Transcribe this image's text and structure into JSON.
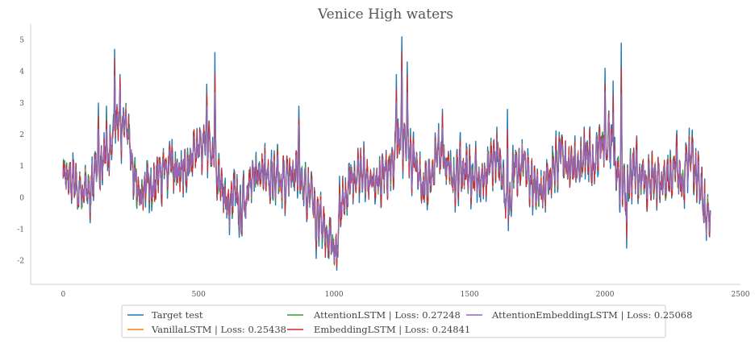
{
  "chart_data": {
    "type": "line",
    "title": "Venice High waters",
    "xlabel": "",
    "ylabel": "",
    "xlim": [
      -120,
      2500
    ],
    "ylim": [
      -2.75,
      5.5
    ],
    "x_ticks": [
      0,
      500,
      1000,
      1500,
      2000,
      2500
    ],
    "y_ticks": [
      -2,
      -1,
      0,
      1,
      2,
      3,
      4,
      5
    ],
    "grid": false,
    "legend_placement": "bottom-center",
    "n_points": 2390,
    "series": [
      {
        "name": "Target test",
        "color": "#1f77b4"
      },
      {
        "name": "VanillaLSTM | Loss: 0.25438",
        "color": "#ff7f0e"
      },
      {
        "name": "AttentionLSTM | Loss: 0.27248",
        "color": "#2ca02c"
      },
      {
        "name": "EmbeddingLSTM | Loss: 0.24841",
        "color": "#d62728"
      },
      {
        "name": "AttentionEmbeddingLSTM | Loss: 0.25068",
        "color": "#9467bd"
      }
    ],
    "target_anchors": [
      [
        0,
        0.9
      ],
      [
        40,
        0.6
      ],
      [
        60,
        0.0
      ],
      [
        90,
        0.3
      ],
      [
        130,
        0.9
      ],
      [
        165,
        1.3
      ],
      [
        185,
        2.0
      ],
      [
        205,
        2.4
      ],
      [
        225,
        2.3
      ],
      [
        245,
        1.6
      ],
      [
        265,
        0.6
      ],
      [
        285,
        -0.1
      ],
      [
        305,
        0.5
      ],
      [
        345,
        0.6
      ],
      [
        380,
        1.0
      ],
      [
        420,
        0.8
      ],
      [
        460,
        1.2
      ],
      [
        500,
        1.6
      ],
      [
        530,
        1.9
      ],
      [
        560,
        1.2
      ],
      [
        580,
        0.5
      ],
      [
        600,
        -0.3
      ],
      [
        630,
        0.2
      ],
      [
        660,
        -0.5
      ],
      [
        700,
        0.6
      ],
      [
        740,
        0.9
      ],
      [
        780,
        0.7
      ],
      [
        820,
        0.5
      ],
      [
        860,
        1.0
      ],
      [
        900,
        0.2
      ],
      [
        940,
        -0.6
      ],
      [
        970,
        -1.2
      ],
      [
        1000,
        -1.7
      ],
      [
        1030,
        0.0
      ],
      [
        1060,
        0.4
      ],
      [
        1100,
        0.8
      ],
      [
        1140,
        0.5
      ],
      [
        1180,
        0.8
      ],
      [
        1210,
        0.9
      ],
      [
        1240,
        1.9
      ],
      [
        1270,
        1.6
      ],
      [
        1300,
        0.8
      ],
      [
        1330,
        0.5
      ],
      [
        1360,
        0.9
      ],
      [
        1390,
        1.4
      ],
      [
        1420,
        1.0
      ],
      [
        1440,
        0.4
      ],
      [
        1480,
        0.9
      ],
      [
        1520,
        0.5
      ],
      [
        1560,
        0.8
      ],
      [
        1600,
        1.3
      ],
      [
        1640,
        -0.3
      ],
      [
        1670,
        0.9
      ],
      [
        1700,
        1.2
      ],
      [
        1720,
        0.6
      ],
      [
        1760,
        0.2
      ],
      [
        1800,
        0.6
      ],
      [
        1840,
        1.3
      ],
      [
        1880,
        1.0
      ],
      [
        1920,
        1.1
      ],
      [
        1960,
        1.3
      ],
      [
        1990,
        1.6
      ],
      [
        2020,
        1.8
      ],
      [
        2045,
        0.6
      ],
      [
        2070,
        0.3
      ],
      [
        2100,
        0.9
      ],
      [
        2140,
        0.4
      ],
      [
        2180,
        0.8
      ],
      [
        2220,
        0.5
      ],
      [
        2260,
        0.8
      ],
      [
        2290,
        0.6
      ],
      [
        2320,
        1.2
      ],
      [
        2350,
        0.6
      ],
      [
        2370,
        -0.5
      ],
      [
        2390,
        -0.8
      ]
    ],
    "target_peaks": [
      [
        190,
        4.7
      ],
      [
        210,
        3.9
      ],
      [
        130,
        3.0
      ],
      [
        160,
        2.9
      ],
      [
        230,
        2.8
      ],
      [
        560,
        4.6
      ],
      [
        530,
        3.6
      ],
      [
        1250,
        5.1
      ],
      [
        1270,
        4.3
      ],
      [
        1230,
        3.9
      ],
      [
        2000,
        4.1
      ],
      [
        2060,
        4.9
      ],
      [
        2030,
        3.7
      ],
      [
        870,
        2.9
      ],
      [
        1400,
        2.8
      ],
      [
        1640,
        2.8
      ],
      [
        1010,
        -2.3
      ],
      [
        2080,
        -1.6
      ]
    ]
  }
}
